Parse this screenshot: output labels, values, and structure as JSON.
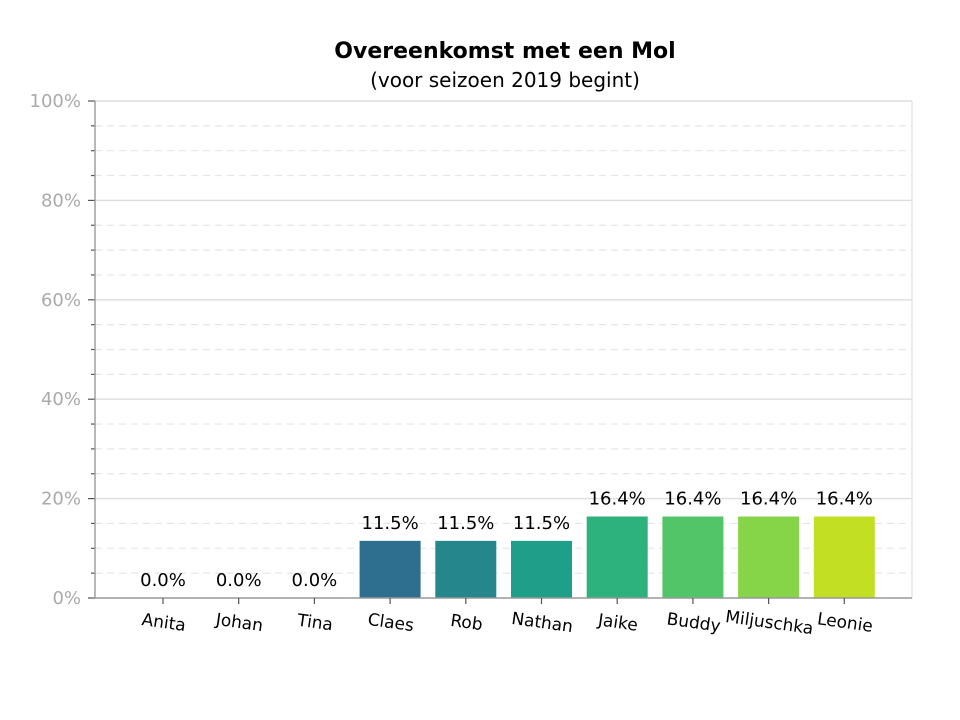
{
  "chart_data": {
    "type": "bar",
    "title": "Overeenkomst met een Mol",
    "subtitle": "(voor seizoen 2019 begint)",
    "xlabel": "",
    "ylabel": "",
    "categories": [
      "Anita",
      "Johan",
      "Tina",
      "Claes",
      "Rob",
      "Nathan",
      "Jaike",
      "Buddy",
      "Miljuschka",
      "Leonie"
    ],
    "values": [
      0.0,
      0.0,
      0.0,
      11.5,
      11.5,
      11.5,
      16.4,
      16.4,
      16.4,
      16.4
    ],
    "data_labels": [
      "0.0%",
      "0.0%",
      "0.0%",
      "11.5%",
      "11.5%",
      "11.5%",
      "16.4%",
      "16.4%",
      "16.4%",
      "16.4%"
    ],
    "colors": [
      "#2e6e8e",
      "#2e6e8e",
      "#2e6e8e",
      "#2e6e8e",
      "#25878c",
      "#1f9e89",
      "#2db27d",
      "#52c569",
      "#86d549",
      "#c2df23"
    ],
    "ylim": [
      0,
      100
    ],
    "y_ticks": [
      0,
      20,
      40,
      60,
      80,
      100
    ],
    "y_tick_labels": [
      "0%",
      "20%",
      "40%",
      "60%",
      "80%",
      "100%"
    ],
    "y_minor_step": 5,
    "grid": true,
    "legend": "none"
  }
}
